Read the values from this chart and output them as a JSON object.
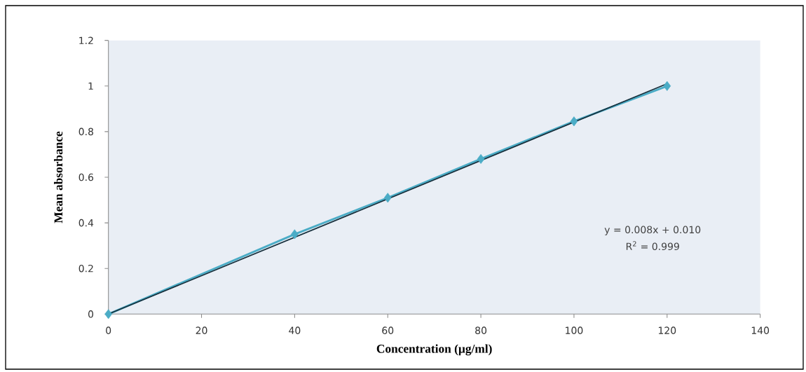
{
  "chart_data": {
    "type": "line",
    "xlabel": "Concentration (µg/ml)",
    "ylabel": "Mean absorbance",
    "series": [
      {
        "color": "#4bacc6",
        "x": [
          0,
          40,
          60,
          80,
          100,
          120
        ],
        "values": [
          0,
          0.35,
          0.51,
          0.68,
          0.845,
          1.0
        ],
        "marker": "diamond"
      },
      {
        "type": "line",
        "color": "#17303d",
        "x": [
          0,
          120
        ],
        "values": [
          0.0,
          1.01
        ],
        "marker": "none"
      }
    ],
    "xlim": [
      0,
      140
    ],
    "xticks": [
      0,
      20,
      40,
      60,
      80,
      100,
      120,
      140
    ],
    "ylim": [
      0,
      1.2
    ],
    "yticks": [
      0,
      0.2,
      0.4,
      0.6,
      0.8,
      1,
      1.2
    ],
    "annotations": [
      "y = 0.008x + 0.010",
      "R$^{2}$ = 0.999"
    ]
  }
}
